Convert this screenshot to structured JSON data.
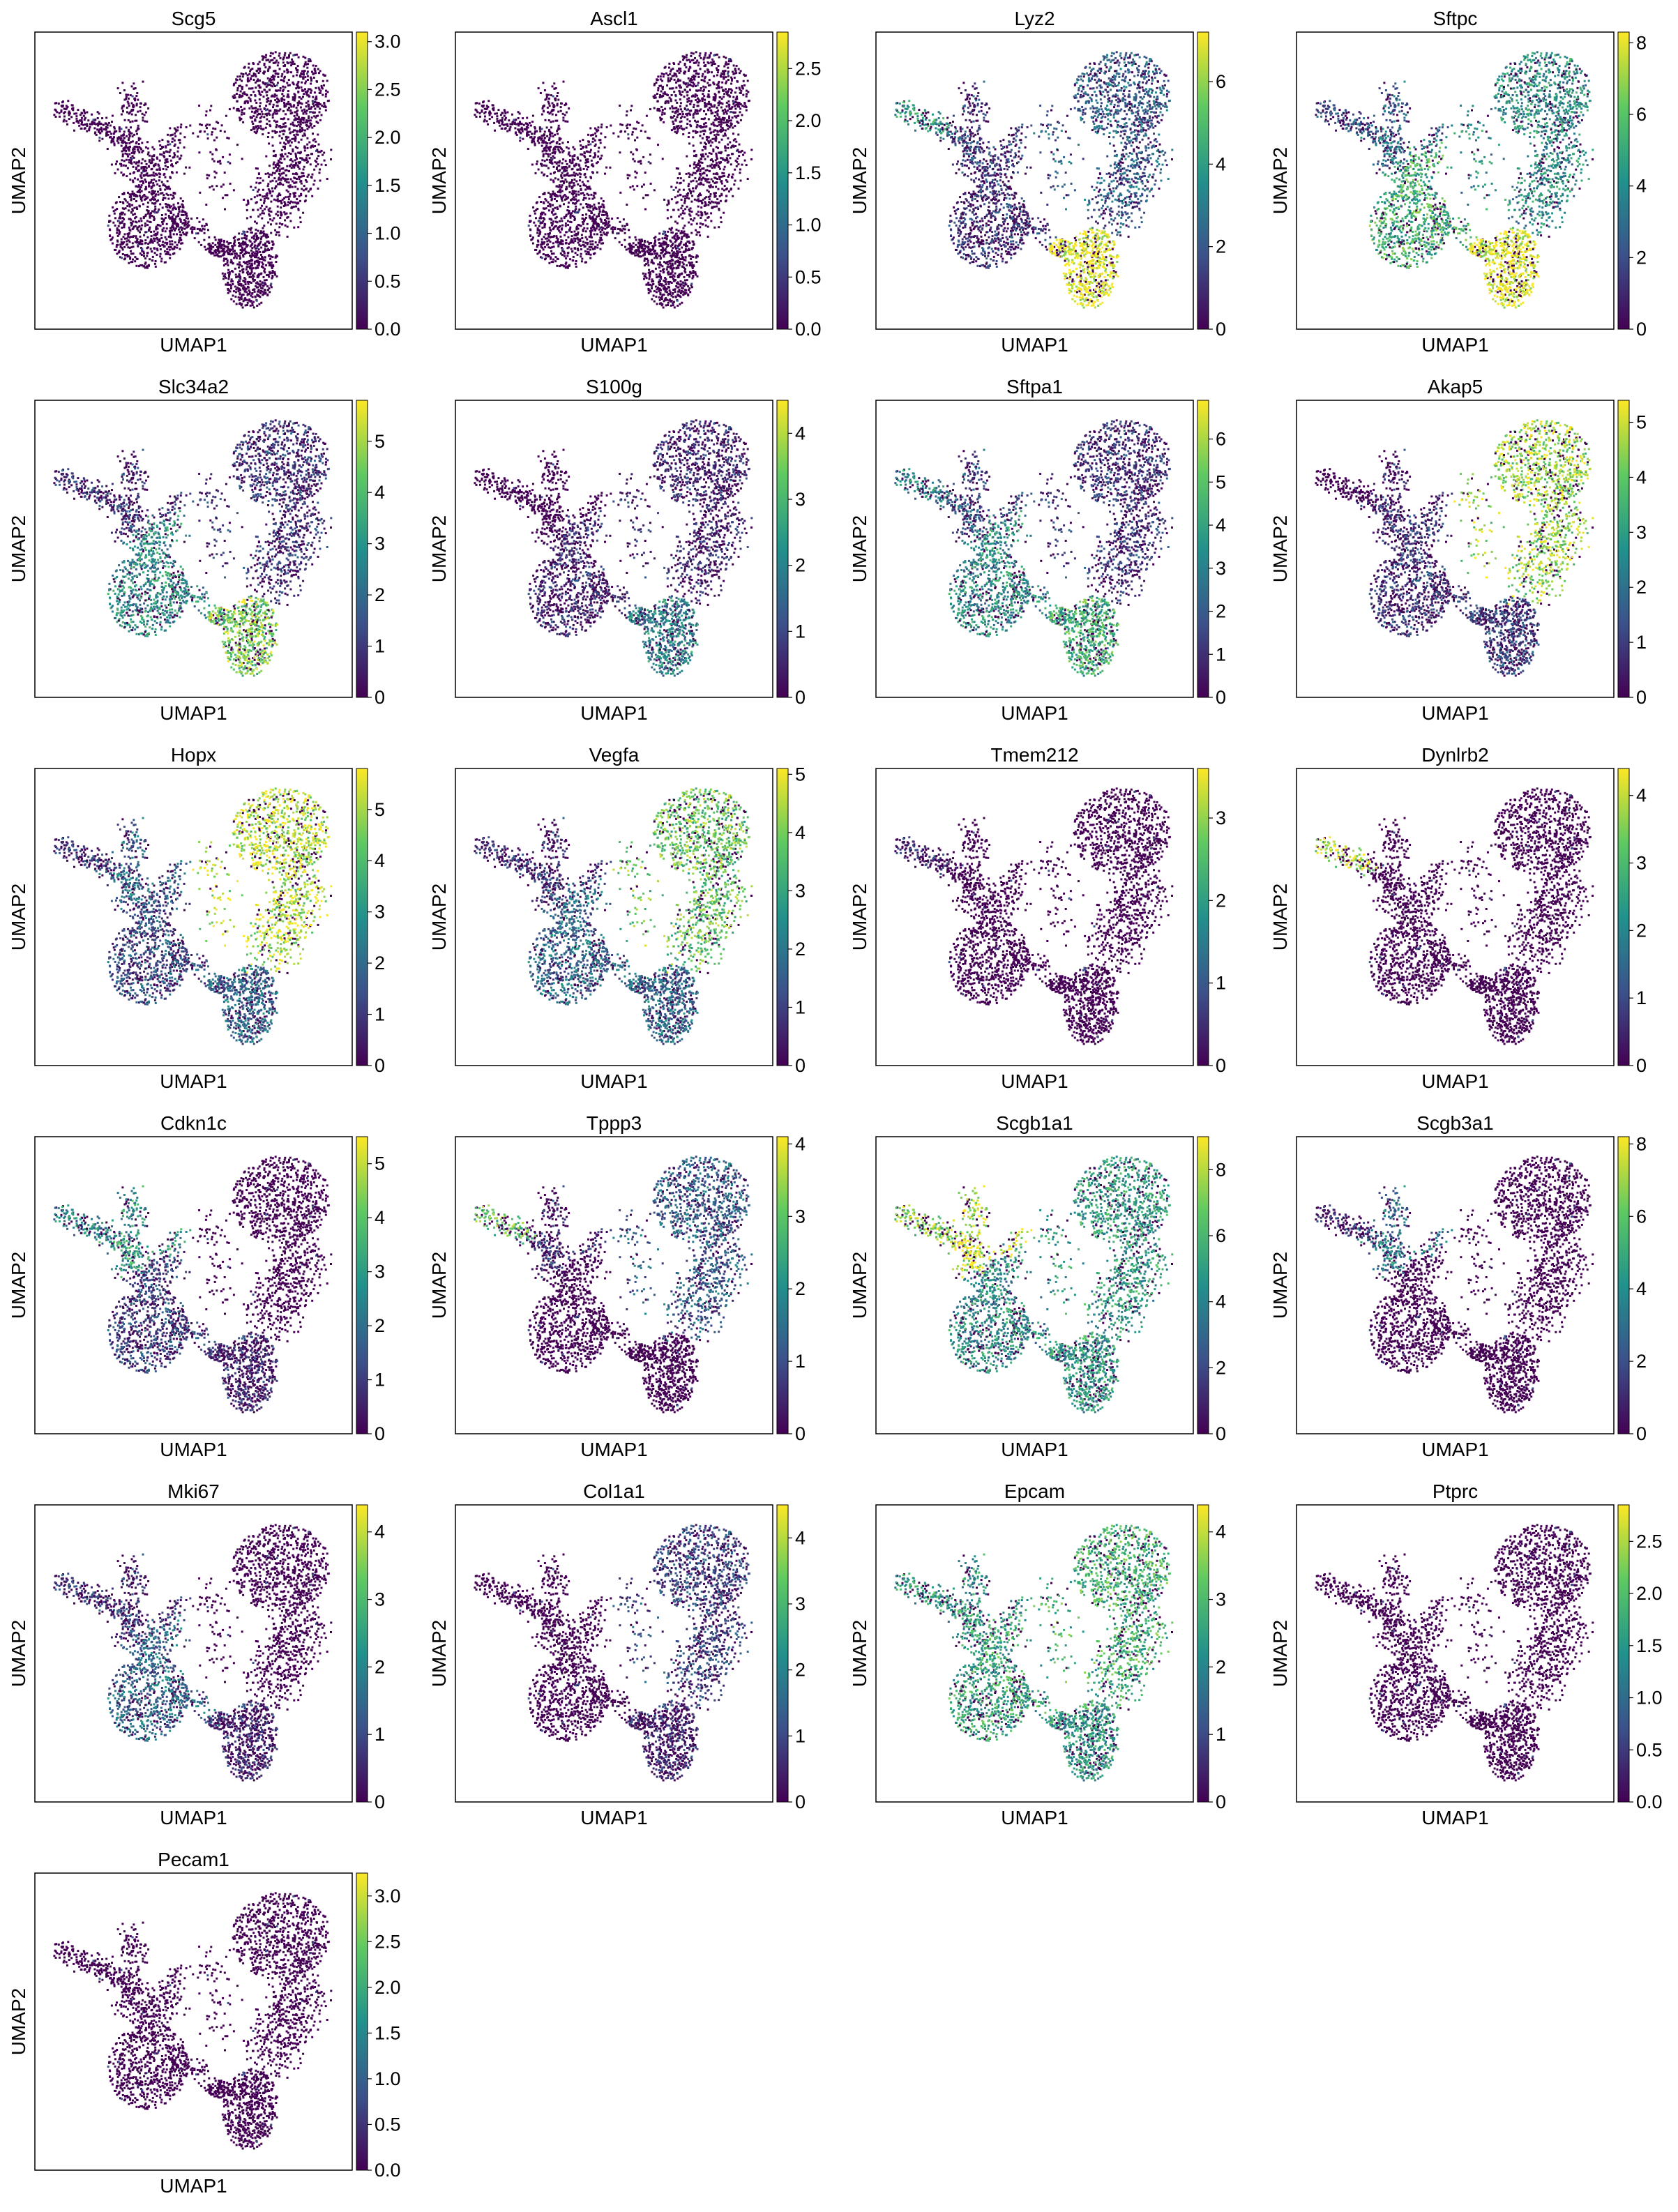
{
  "chart_data": {
    "type": "scatter",
    "embedding": "UMAP",
    "xlabel": "UMAP1",
    "ylabel": "UMAP2",
    "colormap": [
      "#440154",
      "#3b528b",
      "#21918c",
      "#5ec962",
      "#fde725"
    ],
    "background_cell_color": "#440154",
    "grid": false,
    "panels": [
      {
        "gene": "Scg5",
        "vmax": 3.1,
        "ticks": [
          "0.0",
          "0.5",
          "1.0",
          "1.5",
          "2.0",
          "2.5",
          "3.0"
        ],
        "hot": {
          "ec": 0.0,
          "at1": 0.0,
          "at2": 0.0,
          "lower": 0.0,
          "arm": 0.0,
          "tip": 0.0
        }
      },
      {
        "gene": "Ascl1",
        "vmax": 2.85,
        "ticks": [
          "0.0",
          "0.5",
          "1.0",
          "1.5",
          "2.0",
          "2.5"
        ],
        "hot": {
          "ec": 0.0,
          "at1": 0.0,
          "at2": 0.0,
          "lower": 0.0,
          "arm": 0.0,
          "tip": 0.0
        }
      },
      {
        "gene": "Lyz2",
        "vmax": 7.2,
        "ticks": [
          "0",
          "2",
          "4",
          "6"
        ],
        "hot": {
          "ec": 0.0,
          "at1": 0.25,
          "at2": 0.95,
          "lower": 0.1,
          "arm": 0.15,
          "tip": 0.5
        }
      },
      {
        "gene": "Sftpc",
        "vmax": 8.3,
        "ticks": [
          "0",
          "2",
          "4",
          "6",
          "8"
        ],
        "hot": {
          "ec": 0.0,
          "at1": 0.45,
          "at2": 0.95,
          "lower": 0.6,
          "arm": 0.3,
          "tip": 0.2
        }
      },
      {
        "gene": "Slc34a2",
        "vmax": 5.8,
        "ticks": [
          "0",
          "1",
          "2",
          "3",
          "4",
          "5"
        ],
        "hot": {
          "ec": 0.0,
          "at1": 0.1,
          "at2": 0.75,
          "lower": 0.45,
          "arm": 0.1,
          "tip": 0.1
        }
      },
      {
        "gene": "S100g",
        "vmax": 4.5,
        "ticks": [
          "0",
          "1",
          "2",
          "3",
          "4"
        ],
        "hot": {
          "ec": 0.0,
          "at1": 0.05,
          "at2": 0.4,
          "lower": 0.05,
          "arm": 0.0,
          "tip": 0.0
        }
      },
      {
        "gene": "Sftpa1",
        "vmax": 6.9,
        "ticks": [
          "0",
          "1",
          "2",
          "3",
          "4",
          "5",
          "6"
        ],
        "hot": {
          "ec": 0.0,
          "at1": 0.1,
          "at2": 0.6,
          "lower": 0.45,
          "arm": 0.2,
          "tip": 0.4
        }
      },
      {
        "gene": "Akap5",
        "vmax": 5.4,
        "ticks": [
          "0",
          "1",
          "2",
          "3",
          "4",
          "5"
        ],
        "hot": {
          "ec": 0.0,
          "at1": 0.8,
          "at2": 0.15,
          "lower": 0.1,
          "arm": 0.05,
          "tip": 0.0
        }
      },
      {
        "gene": "Hopx",
        "vmax": 5.8,
        "ticks": [
          "0",
          "1",
          "2",
          "3",
          "4",
          "5"
        ],
        "hot": {
          "ec": 0.0,
          "at1": 0.85,
          "at2": 0.3,
          "lower": 0.2,
          "arm": 0.3,
          "tip": 0.1
        }
      },
      {
        "gene": "Vegfa",
        "vmax": 5.1,
        "ticks": [
          "0",
          "1",
          "2",
          "3",
          "4",
          "5"
        ],
        "hot": {
          "ec": 0.0,
          "at1": 0.7,
          "at2": 0.3,
          "lower": 0.3,
          "arm": 0.1,
          "tip": 0.1
        }
      },
      {
        "gene": "Tmem212",
        "vmax": 3.6,
        "ticks": [
          "0",
          "1",
          "2",
          "3"
        ],
        "hot": {
          "ec": 0.0,
          "at1": 0.0,
          "at2": 0.0,
          "lower": 0.0,
          "arm": 0.0,
          "tip": 0.05
        }
      },
      {
        "gene": "Dynlrb2",
        "vmax": 4.4,
        "ticks": [
          "0",
          "1",
          "2",
          "3",
          "4"
        ],
        "hot": {
          "ec": 0.0,
          "at1": 0.0,
          "at2": 0.0,
          "lower": 0.0,
          "arm": 0.0,
          "tip": 0.85
        }
      },
      {
        "gene": "Cdkn1c",
        "vmax": 5.5,
        "ticks": [
          "0",
          "1",
          "2",
          "3",
          "4",
          "5"
        ],
        "hot": {
          "ec": 0.0,
          "at1": 0.0,
          "at2": 0.05,
          "lower": 0.15,
          "arm": 0.5,
          "tip": 0.4
        }
      },
      {
        "gene": "Tppp3",
        "vmax": 4.1,
        "ticks": [
          "0",
          "1",
          "2",
          "3",
          "4"
        ],
        "hot": {
          "ec": 0.0,
          "at1": 0.25,
          "at2": 0.0,
          "lower": 0.0,
          "arm": 0.05,
          "tip": 0.7
        }
      },
      {
        "gene": "Scgb1a1",
        "vmax": 9.0,
        "ticks": [
          "0",
          "2",
          "4",
          "6",
          "8"
        ],
        "hot": {
          "ec": 0.0,
          "at1": 0.5,
          "at2": 0.5,
          "lower": 0.45,
          "arm": 0.9,
          "tip": 0.75
        }
      },
      {
        "gene": "Scgb3a1",
        "vmax": 8.2,
        "ticks": [
          "0",
          "2",
          "4",
          "6",
          "8"
        ],
        "hot": {
          "ec": 0.0,
          "at1": 0.0,
          "at2": 0.0,
          "lower": 0.0,
          "arm": 0.35,
          "tip": 0.05
        }
      },
      {
        "gene": "Mki67",
        "vmax": 4.4,
        "ticks": [
          "0",
          "1",
          "2",
          "3",
          "4"
        ],
        "hot": {
          "ec": 0.0,
          "at1": 0.0,
          "at2": 0.05,
          "lower": 0.3,
          "arm": 0.1,
          "tip": 0.1
        }
      },
      {
        "gene": "Col1a1",
        "vmax": 4.5,
        "ticks": [
          "0",
          "1",
          "2",
          "3",
          "4"
        ],
        "hot": {
          "ec": 0.0,
          "at1": 0.15,
          "at2": 0.05,
          "lower": 0.0,
          "arm": 0.0,
          "tip": 0.0
        }
      },
      {
        "gene": "Epcam",
        "vmax": 4.4,
        "ticks": [
          "0",
          "1",
          "2",
          "3",
          "4"
        ],
        "hot": {
          "ec": 0.0,
          "at1": 0.6,
          "at2": 0.5,
          "lower": 0.55,
          "arm": 0.5,
          "tip": 0.5
        }
      },
      {
        "gene": "Ptprc",
        "vmax": 2.85,
        "ticks": [
          "0.0",
          "0.5",
          "1.0",
          "1.5",
          "2.0",
          "2.5"
        ],
        "hot": {
          "ec": 0.0,
          "at1": 0.0,
          "at2": 0.0,
          "lower": 0.0,
          "arm": 0.0,
          "tip": 0.0
        }
      },
      {
        "gene": "Pecam1",
        "vmax": 3.25,
        "ticks": [
          "0.0",
          "0.5",
          "1.0",
          "1.5",
          "2.0",
          "2.5",
          "3.0"
        ],
        "hot": {
          "ec": 0.0,
          "at1": 0.0,
          "at2": 0.0,
          "lower": 0.0,
          "arm": 0.0,
          "tip": 0.0
        }
      }
    ]
  }
}
